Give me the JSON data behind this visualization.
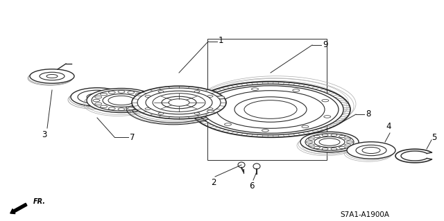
{
  "background_color": "#ffffff",
  "diagram_code": "S7A1-A1900A",
  "fr_label": "FR.",
  "line_color": "#2a2a2a",
  "text_color": "#000000",
  "label_fontsize": 8.5,
  "code_fontsize": 7.5
}
